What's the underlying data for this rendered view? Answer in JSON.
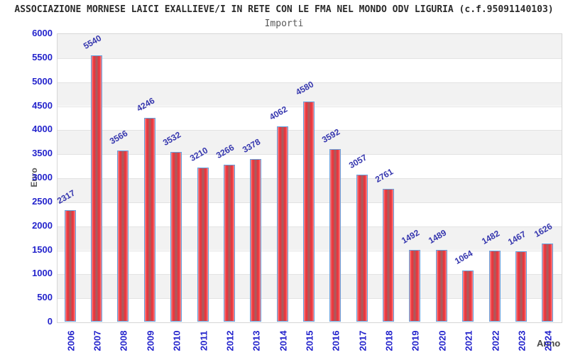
{
  "header": {
    "title": "ASSOCIAZIONE MORNESE LAICI EXALLIEVE/I IN RETE CON LE FMA NEL MONDO ODV LIGURIA (c.f.95091140103)",
    "subtitle": "Importi"
  },
  "chart_data": {
    "type": "bar",
    "title": "ASSOCIAZIONE MORNESE LAICI EXALLIEVE/I IN RETE CON LE FMA NEL MONDO ODV LIGURIA (c.f.95091140103)",
    "subtitle": "Importi",
    "xlabel": "Anno",
    "ylabel": "Euro",
    "categories": [
      "2006",
      "2007",
      "2008",
      "2009",
      "2010",
      "2011",
      "2012",
      "2013",
      "2014",
      "2015",
      "2016",
      "2017",
      "2018",
      "2019",
      "2020",
      "2021",
      "2022",
      "2023",
      "2024"
    ],
    "values": [
      2317,
      5540,
      3566,
      4246,
      3532,
      3210,
      3266,
      3378,
      4062,
      4580,
      3592,
      3057,
      2761,
      1492,
      1489,
      1064,
      1482,
      1467,
      1626
    ],
    "ylim": [
      0,
      6000
    ],
    "ytick_step": 500,
    "grid": "alternating horizontal bands every 500, light gray / white",
    "legend_position": "none",
    "colors": {
      "bar_fill_edge": "#ee3038",
      "bar_fill_center": "#9e6063",
      "bar_border": "#66a0dd",
      "tick_label": "#2424cc",
      "value_label": "#3536ae",
      "band_gray": "#f2f2f2",
      "band_white": "#ffffff",
      "grid_line": "#e3e3e3",
      "plot_border": "#d6d6d6",
      "title_color": "#2b2b2b",
      "subtitle_color": "#585858",
      "axis_title_color": "#555555"
    }
  }
}
